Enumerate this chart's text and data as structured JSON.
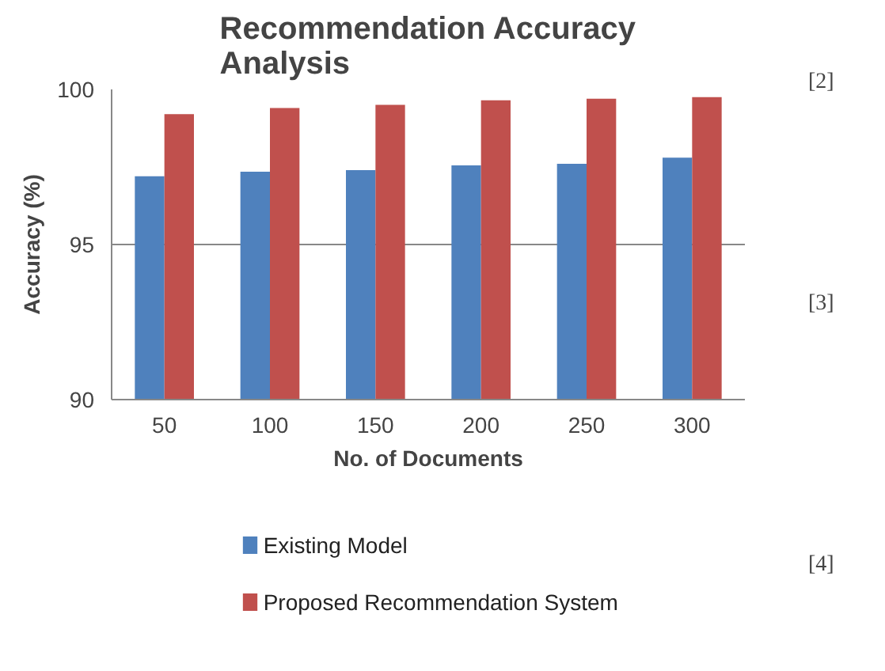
{
  "chart_data": {
    "type": "bar",
    "title": "Recommendation Accuracy\nAnalysis",
    "xlabel": "No. of Documents",
    "ylabel": "Accuracy (%)",
    "categories": [
      "50",
      "100",
      "150",
      "200",
      "250",
      "300"
    ],
    "series": [
      {
        "name": "Existing Model",
        "color": "#4f81bd",
        "values": [
          97.2,
          97.35,
          97.4,
          97.55,
          97.6,
          97.8
        ]
      },
      {
        "name": "Proposed Recommendation System",
        "color": "#c0504d",
        "values": [
          99.2,
          99.4,
          99.5,
          99.65,
          99.7,
          99.75
        ]
      }
    ],
    "ylim": [
      90,
      100
    ],
    "yticks": [
      90,
      95,
      100
    ],
    "grid": "y",
    "legend": "bottom",
    "annotations": [
      "[2]",
      "[3]",
      "[4]"
    ]
  }
}
